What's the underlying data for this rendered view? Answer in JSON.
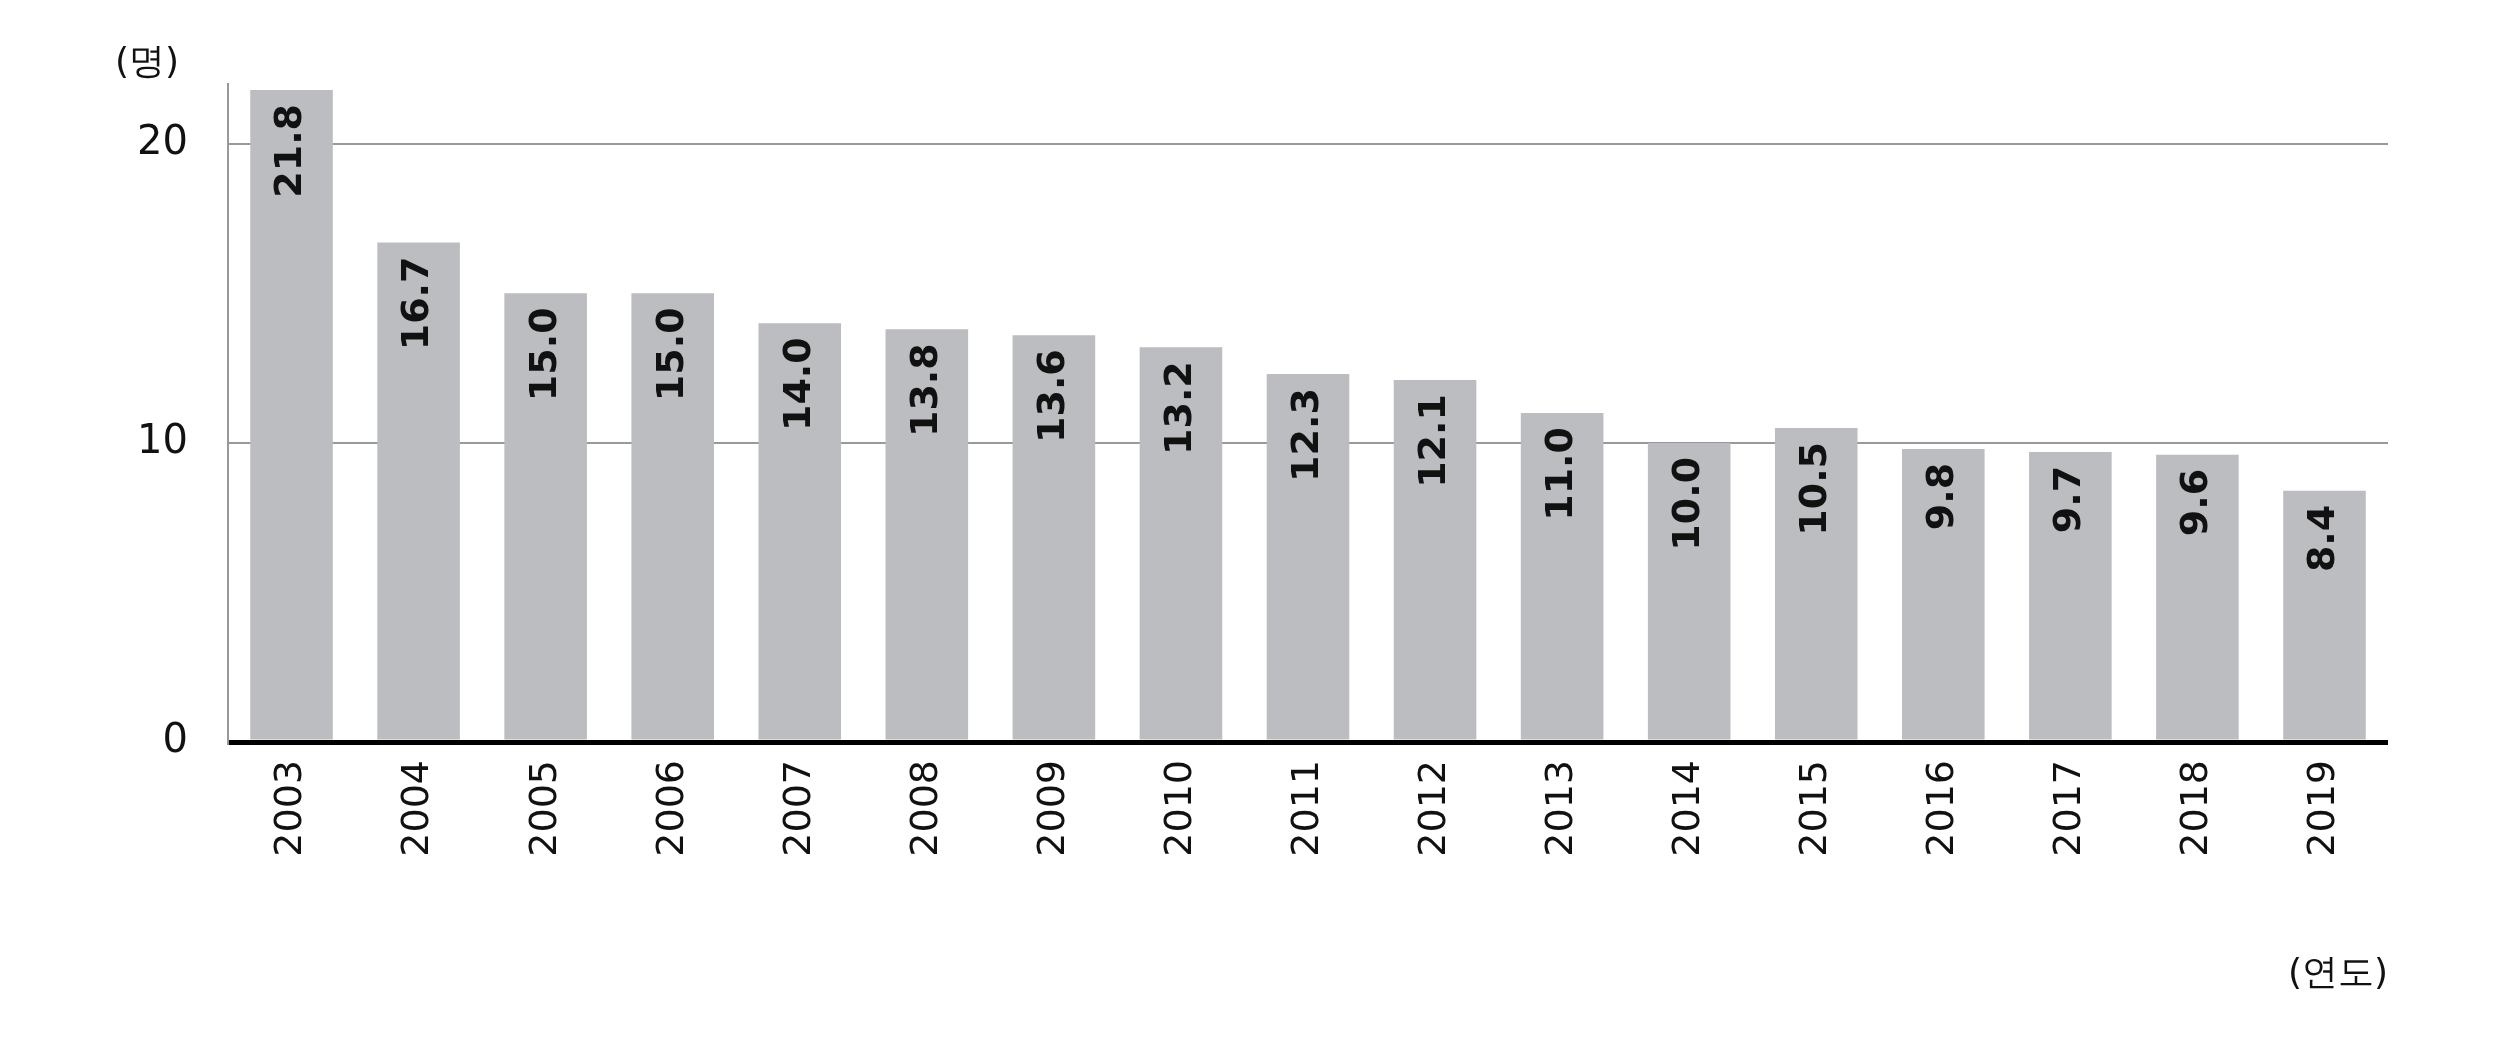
{
  "chart_data": {
    "type": "bar",
    "ylabel": "(명)",
    "xlabel": "(연도)",
    "categories": [
      "2003",
      "2004",
      "2005",
      "2006",
      "2007",
      "2008",
      "2009",
      "2010",
      "2011",
      "2012",
      "2013",
      "2014",
      "2015",
      "2016",
      "2017",
      "2018",
      "2019"
    ],
    "values": [
      21.8,
      16.7,
      15.0,
      15.0,
      14.0,
      13.8,
      13.6,
      13.2,
      12.3,
      12.1,
      11.0,
      10.0,
      10.5,
      9.8,
      9.7,
      9.6,
      8.4
    ],
    "value_labels": [
      "21.8",
      "16.7",
      "15.0",
      "15.0",
      "14.0",
      "13.8",
      "13.6",
      "13.2",
      "12.3",
      "12.1",
      "11.0",
      "10.0",
      "10.5",
      "9.8",
      "9.7",
      "9.6",
      "8.4"
    ],
    "color": "#bcbdc0",
    "ylim": [
      0,
      22
    ],
    "yticks": [
      0,
      10,
      20
    ],
    "grid": "y",
    "legend": false
  }
}
